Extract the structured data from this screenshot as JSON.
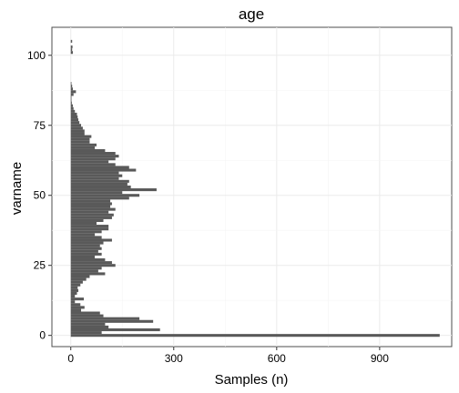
{
  "chart_data": {
    "type": "bar",
    "orientation": "horizontal",
    "title": "age",
    "xlabel": "Samples (n)",
    "ylabel": "varname",
    "xlim": [
      -55,
      1110
    ],
    "ylim": [
      -4,
      110
    ],
    "xticks": [
      0,
      300,
      600,
      900
    ],
    "yticks": [
      0,
      25,
      50,
      75,
      100
    ],
    "grid": true,
    "bar_color": "#595959",
    "categories": [
      0,
      1,
      2,
      3,
      4,
      5,
      6,
      7,
      8,
      9,
      10,
      11,
      12,
      13,
      14,
      15,
      16,
      17,
      18,
      19,
      20,
      21,
      22,
      23,
      24,
      25,
      26,
      27,
      28,
      29,
      30,
      31,
      32,
      33,
      34,
      35,
      36,
      37,
      38,
      39,
      40,
      41,
      42,
      43,
      44,
      45,
      46,
      47,
      48,
      49,
      50,
      51,
      52,
      53,
      54,
      55,
      56,
      57,
      58,
      59,
      60,
      61,
      62,
      63,
      64,
      65,
      66,
      67,
      68,
      69,
      70,
      71,
      72,
      73,
      74,
      75,
      76,
      77,
      78,
      79,
      80,
      81,
      82,
      83,
      84,
      85,
      86,
      87,
      88,
      89,
      90,
      91,
      92,
      93,
      94,
      95,
      96,
      97,
      98,
      99,
      100,
      101,
      102,
      103,
      104,
      105
    ],
    "values": [
      1075,
      90,
      260,
      110,
      100,
      240,
      200,
      95,
      85,
      30,
      40,
      28,
      12,
      38,
      12,
      18,
      22,
      20,
      28,
      35,
      45,
      55,
      100,
      80,
      90,
      130,
      120,
      100,
      70,
      90,
      80,
      90,
      85,
      95,
      120,
      90,
      70,
      90,
      110,
      110,
      75,
      95,
      120,
      125,
      110,
      130,
      115,
      120,
      115,
      170,
      200,
      150,
      250,
      175,
      165,
      170,
      140,
      150,
      140,
      190,
      170,
      130,
      110,
      130,
      140,
      130,
      100,
      70,
      75,
      55,
      55,
      60,
      40,
      40,
      35,
      30,
      25,
      22,
      20,
      18,
      12,
      8,
      6,
      3,
      2,
      2,
      8,
      15,
      6,
      4,
      2,
      0,
      0,
      0,
      0,
      0,
      0,
      0,
      0,
      0,
      0,
      6,
      4,
      5,
      0,
      4
    ]
  }
}
